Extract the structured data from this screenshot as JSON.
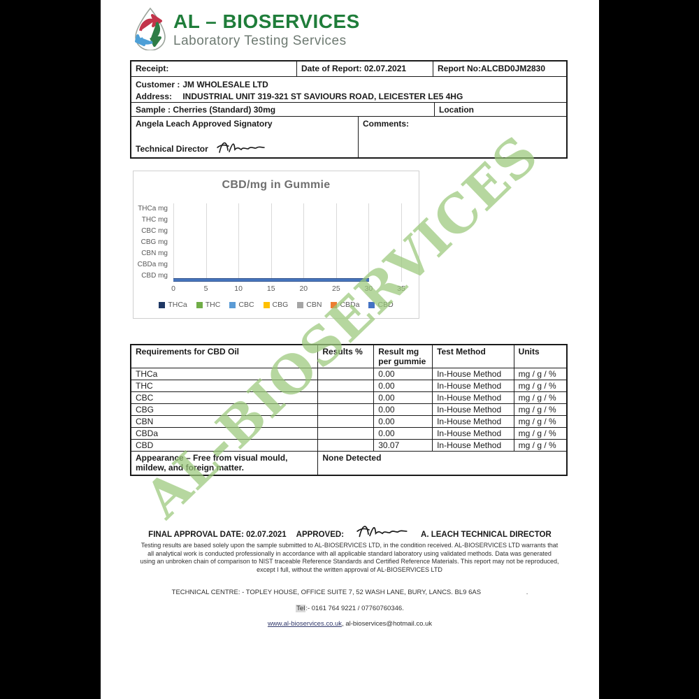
{
  "logo": {
    "title": "AL – BIOSERVICES",
    "subtitle": "Laboratory Testing Services",
    "title_color": "#1f7d3a"
  },
  "header_table": {
    "receipt_label": "Receipt:",
    "date_of_report": "Date of Report: 02.07.2021",
    "report_no": "Report No:ALCBD0JM2830",
    "customer_label": "Customer :",
    "customer": "JM WHOLESALE LTD",
    "address_label": "Address:",
    "address": "INDUSTRIAL UNIT 319-321 ST SAVIOURS ROAD, LEICESTER LE5 4HG",
    "sample_label": "Sample :",
    "sample": "Cherries (Standard) 30mg",
    "location_label": "Location",
    "signatory": "Angela Leach Approved Signatory",
    "technical_director_label": "Technical Director",
    "comments_label": "Comments:"
  },
  "chart_data": {
    "type": "bar",
    "orientation": "horizontal",
    "title": "CBD/mg in Gummie",
    "categories": [
      "THCa mg",
      "THC mg",
      "CBC mg",
      "CBG mg",
      "CBN mg",
      "CBDa mg",
      "CBD mg"
    ],
    "values": [
      0,
      0,
      0,
      0,
      0,
      0,
      30.07
    ],
    "xlim": [
      0,
      35
    ],
    "x_ticks": [
      0,
      5,
      10,
      15,
      20,
      25,
      30,
      35
    ],
    "grid": true,
    "legend_position": "bottom",
    "legend": [
      {
        "name": "THCa",
        "color": "#1f3864"
      },
      {
        "name": "THC",
        "color": "#70ad47"
      },
      {
        "name": "CBC",
        "color": "#5b9bd5"
      },
      {
        "name": "CBG",
        "color": "#ffc000"
      },
      {
        "name": "CBN",
        "color": "#a5a5a5"
      },
      {
        "name": "CBDa",
        "color": "#ed7d31"
      },
      {
        "name": "CBD",
        "color": "#4472c4"
      }
    ],
    "bar_color": "#4472c4"
  },
  "results_table": {
    "headers": [
      "Requirements for CBD Oil",
      "Results %",
      "Result mg per gummie",
      "Test Method",
      "Units"
    ],
    "rows": [
      {
        "name": "THCa",
        "results_pct": "",
        "result_mg": "0.00",
        "method": "In-House Method",
        "units": "mg / g / %"
      },
      {
        "name": "THC",
        "results_pct": "",
        "result_mg": "0.00",
        "method": "In-House Method",
        "units": "mg / g / %"
      },
      {
        "name": "CBC",
        "results_pct": "",
        "result_mg": "0.00",
        "method": "In-House Method",
        "units": "mg / g / %"
      },
      {
        "name": "CBG",
        "results_pct": "",
        "result_mg": "0.00",
        "method": "In-House Method",
        "units": "mg / g / %"
      },
      {
        "name": "CBN",
        "results_pct": "",
        "result_mg": "0.00",
        "method": "In-House Method",
        "units": "mg / g / %"
      },
      {
        "name": "CBDa",
        "results_pct": "",
        "result_mg": "0.00",
        "method": "In-House Method",
        "units": "mg / g / %"
      },
      {
        "name": "CBD",
        "results_pct": "",
        "result_mg": "30.07",
        "method": "In-House Method",
        "units": "mg / g / %"
      }
    ],
    "appearance_label": "Appearance – Free from visual mould, mildew, and foreign matter.",
    "appearance_result": "None Detected"
  },
  "approval": {
    "final_date": "FINAL APPROVAL DATE: 02.07.2021",
    "approved_label": "APPROVED:",
    "approver": "A. LEACH TECHNICAL DIRECTOR"
  },
  "disclaimer": "Testing results are based solely upon the sample submitted to AL-BIOSERVICES LTD, in the condition received. AL-BIOSERVICES LTD warrants that all analytical work is conducted professionally in accordance with all applicable standard laboratory using validated methods. Data was generated using an unbroken chain of comparison to NIST traceable Reference Standards and Certified Reference Materials. This report may not be reproduced, except I full, without the written approval of AL-BIOSERVICES LTD",
  "footer": {
    "address": "TECHNICAL CENTRE: - TOPLEY HOUSE, OFFICE SUITE 7, 52 WASH LANE, BURY, LANCS. BL9 6AS",
    "address_dot": ".",
    "tel_label": "Tel",
    "tel_rest": ":- 0161 764 9221 / 07760760346.",
    "website": "www.al-bioservices.co.uk",
    "links_separator": ",  ",
    "email": "al-bioservices@hotmail.co.uk"
  },
  "watermark": "AL-BIOSERVICES"
}
